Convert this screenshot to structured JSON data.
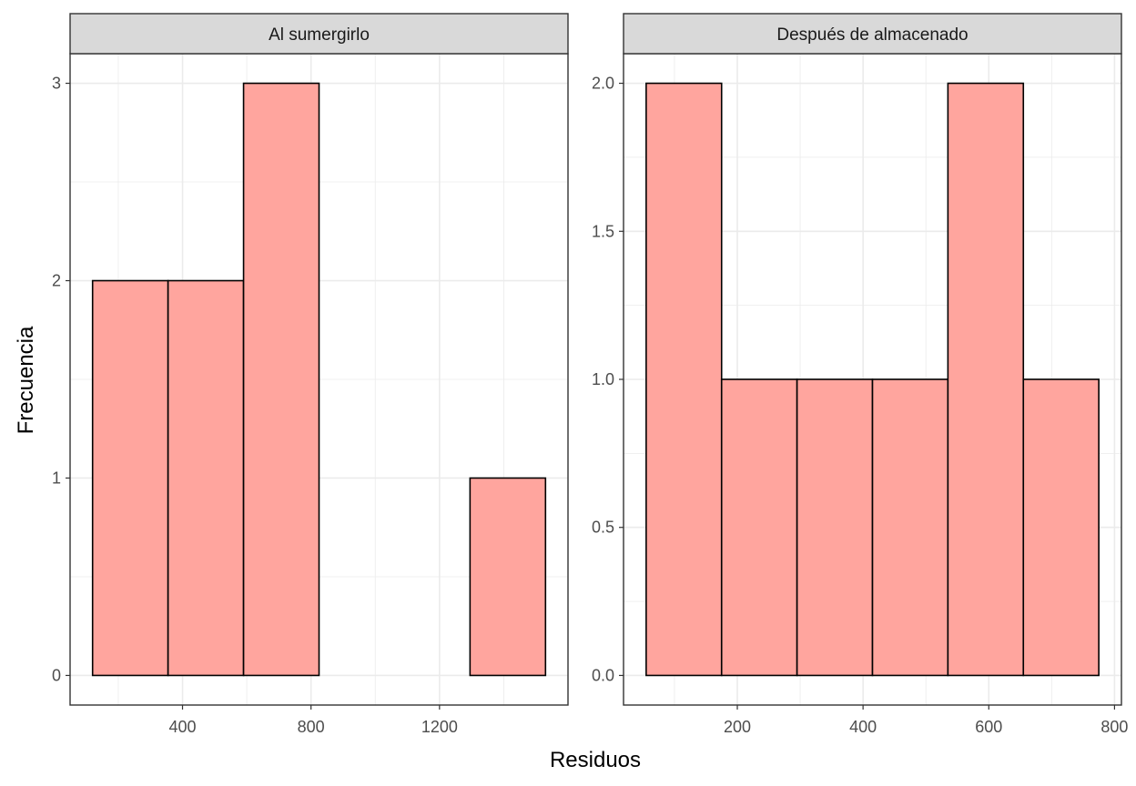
{
  "xlabel": "Residuos",
  "ylabel": "Frecuencia",
  "colors": {
    "fill": "#FFA59E",
    "outline": "#000000",
    "strip_bg": "#D9D9D9",
    "grid": "#EBEBEB"
  },
  "chart_data": [
    {
      "type": "bar",
      "title": "Al sumergirlo",
      "bins": [
        {
          "x0": 120,
          "x1": 355,
          "count": 2
        },
        {
          "x0": 355,
          "x1": 590,
          "count": 2
        },
        {
          "x0": 590,
          "x1": 825,
          "count": 3
        },
        {
          "x0": 825,
          "x1": 1060,
          "count": 0
        },
        {
          "x0": 1060,
          "x1": 1295,
          "count": 0
        },
        {
          "x0": 1295,
          "x1": 1530,
          "count": 1
        }
      ],
      "xlim": [
        50,
        1600
      ],
      "ylim": [
        -0.15,
        3.15
      ],
      "xticks": [
        400,
        800,
        1200
      ],
      "xtick_labels": [
        "400",
        "800",
        "1200"
      ],
      "yticks": [
        0,
        1,
        2,
        3
      ],
      "ytick_labels": [
        "0",
        "1",
        "2",
        "3"
      ],
      "grid": true
    },
    {
      "type": "bar",
      "title": "Después de almacenado",
      "bins": [
        {
          "x0": 55,
          "x1": 175,
          "count": 2
        },
        {
          "x0": 175,
          "x1": 295,
          "count": 1
        },
        {
          "x0": 295,
          "x1": 415,
          "count": 1
        },
        {
          "x0": 415,
          "x1": 535,
          "count": 1
        },
        {
          "x0": 535,
          "x1": 655,
          "count": 2
        },
        {
          "x0": 655,
          "x1": 775,
          "count": 1
        }
      ],
      "xlim": [
        19,
        811
      ],
      "ylim": [
        -0.1,
        2.1
      ],
      "xticks": [
        200,
        400,
        600,
        800
      ],
      "xtick_labels": [
        "200",
        "400",
        "600",
        "800"
      ],
      "yticks": [
        0,
        0.5,
        1,
        1.5,
        2
      ],
      "ytick_labels": [
        "0.0",
        "0.5",
        "1.0",
        "1.5",
        "2.0"
      ],
      "grid": true
    }
  ]
}
